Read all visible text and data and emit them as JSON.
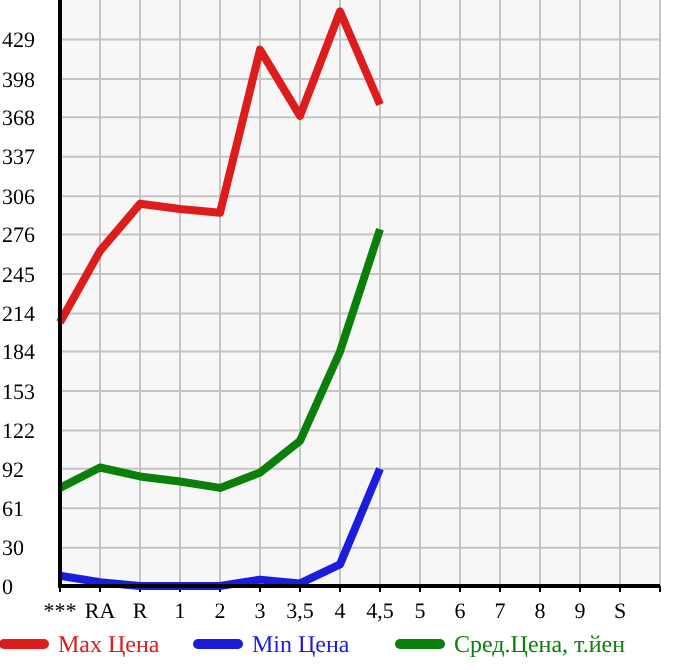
{
  "chart_data": {
    "type": "line",
    "categories": [
      "***",
      "RA",
      "R",
      "1",
      "2",
      "3",
      "3,5",
      "4",
      "4,5",
      "5",
      "6",
      "7",
      "8",
      "9",
      "S"
    ],
    "series": [
      {
        "name": "Max Цена",
        "color": "#dd1c1c",
        "values": [
          207,
          263,
          300,
          296,
          293,
          421,
          369,
          451,
          378,
          null,
          null,
          null,
          null,
          null,
          null
        ]
      },
      {
        "name": "Min Цена",
        "color": "#1c1cdd",
        "values": [
          8,
          3,
          0,
          0,
          0,
          5,
          2,
          17,
          92,
          null,
          null,
          null,
          null,
          null,
          null
        ]
      },
      {
        "name": "Сред.Цена, т.йен",
        "color": "#0a800a",
        "values": [
          77,
          93,
          86,
          82,
          77,
          89,
          114,
          184,
          280,
          null,
          null,
          null,
          null,
          null,
          null
        ]
      }
    ],
    "ylim": [
      0,
      460
    ],
    "yticks": [
      0,
      30,
      61,
      92,
      122,
      153,
      184,
      214,
      245,
      276,
      306,
      337,
      368,
      398,
      429
    ],
    "grid": true,
    "legend": "bottom",
    "marker": "none",
    "line_style": "solid"
  }
}
